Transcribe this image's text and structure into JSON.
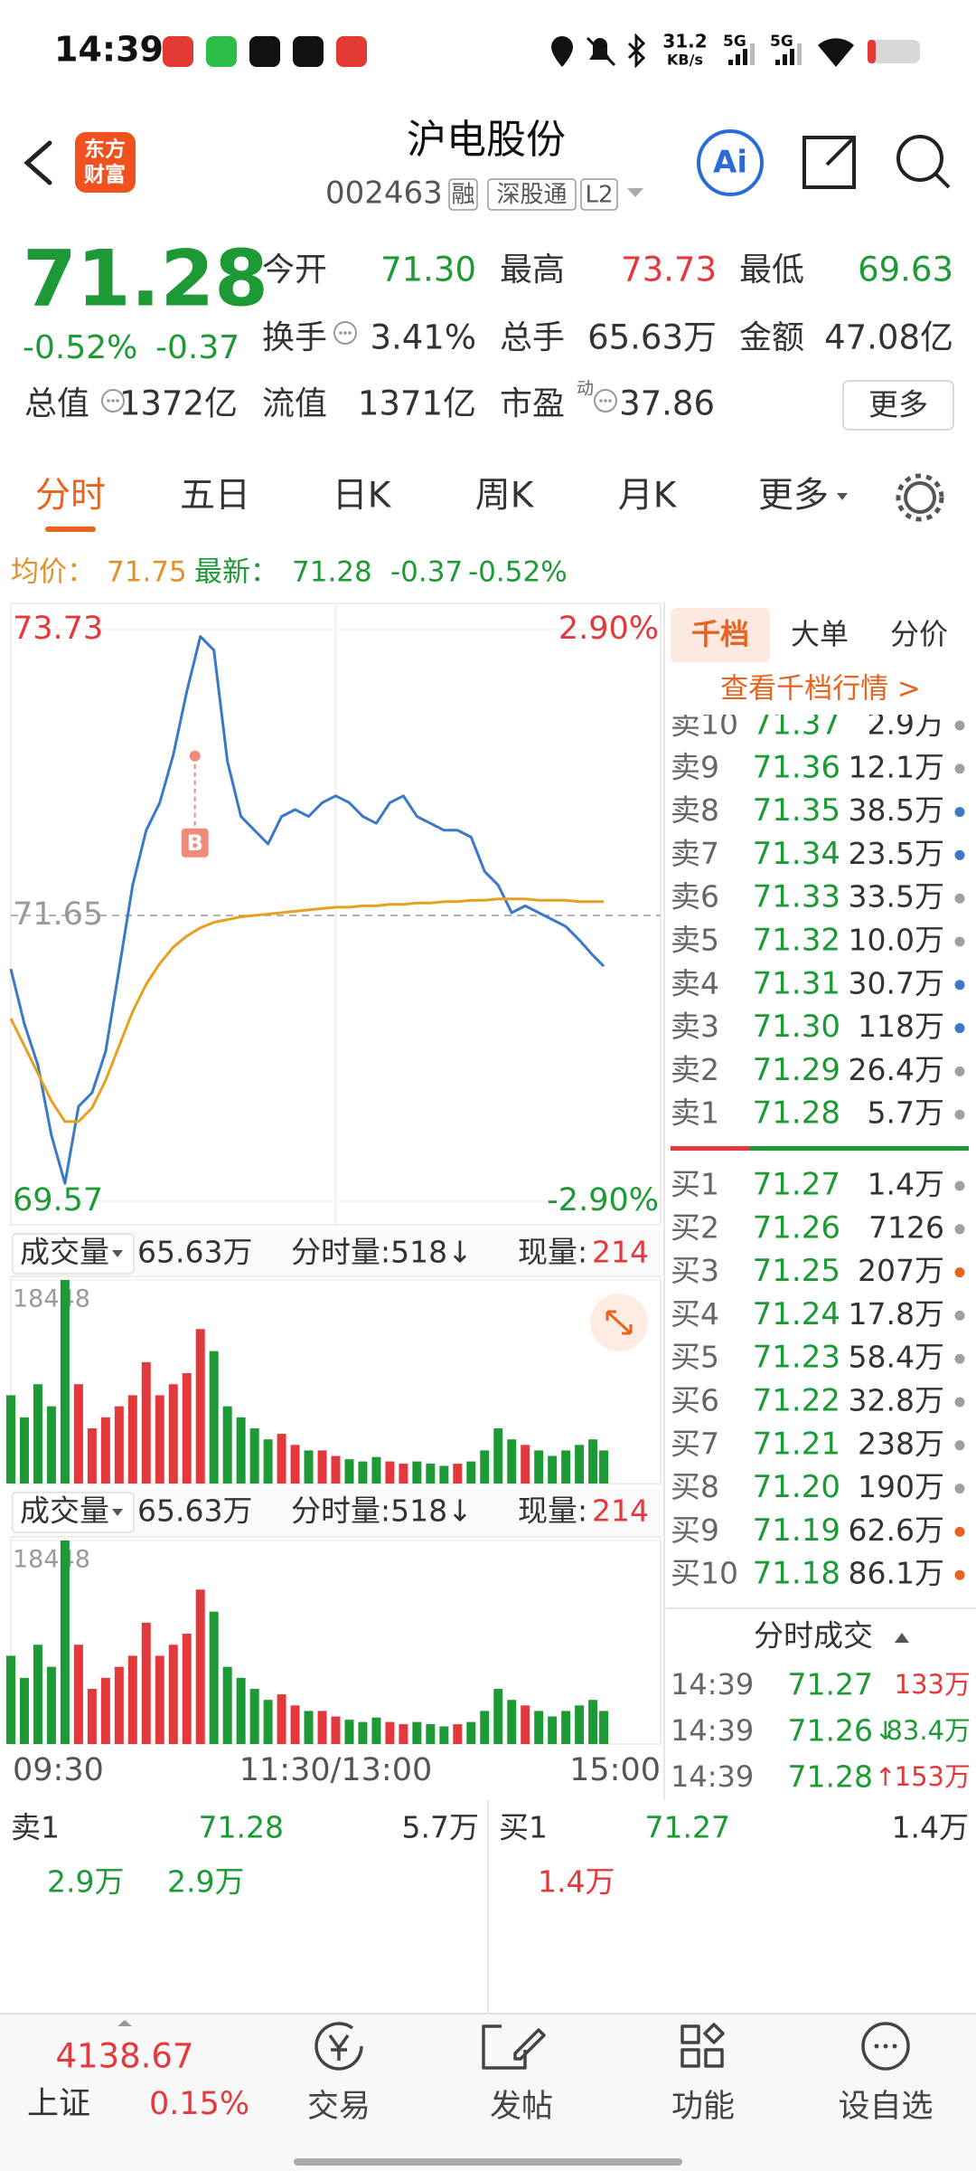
{
  "status_bar": {
    "time": "14:39",
    "speed": "31.2",
    "speed_unit": "KB/s",
    "signal_1": "5G",
    "signal_2": "5G"
  },
  "header": {
    "logo": [
      "东方",
      "财富"
    ],
    "title": "沪电股份",
    "code": "002463",
    "tags": [
      "融",
      "深股通",
      "L2"
    ],
    "ai": "Ai"
  },
  "quote": {
    "price": "71.28",
    "change_pct": "-0.52%",
    "change": "-0.37",
    "fields": [
      {
        "label": "今开",
        "value": "71.30"
      },
      {
        "label": "最高",
        "value": "73.73"
      },
      {
        "label": "最低",
        "value": "69.63"
      },
      {
        "label": "换手",
        "value": "3.41%"
      },
      {
        "label": "总手",
        "value": "65.63万"
      },
      {
        "label": "金额",
        "value": "47.08亿"
      },
      {
        "label": "总值",
        "value": "1372亿"
      },
      {
        "label": "流值",
        "value": "1371亿"
      },
      {
        "label": "市盈",
        "value": "37.86"
      }
    ],
    "pe_note": "动",
    "more": "更多"
  },
  "tabs": [
    "分时",
    "五日",
    "日K",
    "周K",
    "月K",
    "更多"
  ],
  "summary": {
    "avg_label": "均价：",
    "avg": "71.75",
    "latest_label": "最新：",
    "latest": "71.28",
    "change": "-0.37",
    "change_pct": "-0.52%"
  },
  "chart_data": [
    {
      "type": "line",
      "x": [
        0,
        5,
        10,
        15,
        20,
        25,
        30,
        35,
        40,
        45,
        50,
        55,
        60,
        65,
        70,
        75,
        80,
        85,
        90,
        95,
        100,
        105,
        110,
        115,
        120,
        125,
        130,
        135,
        140,
        145,
        150,
        155,
        160,
        165,
        170,
        175,
        180,
        185,
        190,
        195,
        200,
        205,
        210,
        215,
        219
      ],
      "series": [
        {
          "color": "#3a78c8",
          "values": [
            71.26,
            70.86,
            70.56,
            70.05,
            69.7,
            70.26,
            70.36,
            70.66,
            71.26,
            71.87,
            72.27,
            72.47,
            72.82,
            73.28,
            73.68,
            73.58,
            72.77,
            72.37,
            72.27,
            72.17,
            72.37,
            72.42,
            72.37,
            72.47,
            72.52,
            72.47,
            72.37,
            72.32,
            72.47,
            72.52,
            72.37,
            72.32,
            72.27,
            72.27,
            72.22,
            71.97,
            71.87,
            71.67,
            71.72,
            71.67,
            71.62,
            71.57,
            71.47,
            71.36,
            71.28
          ]
        },
        {
          "color": "#e8a020",
          "values": [
            70.9,
            70.7,
            70.5,
            70.3,
            70.15,
            70.15,
            70.25,
            70.45,
            70.7,
            70.95,
            71.15,
            71.3,
            71.42,
            71.5,
            71.56,
            71.6,
            71.62,
            71.64,
            71.65,
            71.66,
            71.67,
            71.68,
            71.69,
            71.7,
            71.71,
            71.71,
            71.72,
            71.72,
            71.73,
            71.73,
            71.74,
            71.74,
            71.75,
            71.75,
            71.76,
            71.76,
            71.77,
            71.77,
            71.77,
            71.76,
            71.76,
            71.76,
            71.75,
            71.75,
            71.75
          ]
        }
      ],
      "xlim": [
        0,
        240
      ],
      "xticks": [
        {
          "value": 0,
          "label": "09:30"
        },
        {
          "value": 120,
          "label": "11:30/13:00"
        },
        {
          "value": 240,
          "label": "15:00"
        }
      ],
      "ylim": [
        69.57,
        73.73
      ],
      "yticks": [
        69.57,
        71.65,
        73.73
      ],
      "y2lim": [
        -2.9,
        2.9
      ],
      "y2ticks": [
        {
          "value": 2.9,
          "label": "2.90%"
        },
        {
          "value": -2.9,
          "label": "-2.90%"
        }
      ],
      "marker": {
        "label": "B",
        "x": 68,
        "value": 72.81
      }
    },
    {
      "type": "bar",
      "indicator": "成交量",
      "total": "65.63万",
      "minute_volume": "分时量:518↓",
      "current_label": "现量:",
      "current": "214",
      "x": [
        0,
        5,
        10,
        15,
        20,
        25,
        30,
        35,
        40,
        45,
        50,
        55,
        60,
        65,
        70,
        75,
        80,
        85,
        90,
        95,
        100,
        105,
        110,
        115,
        120,
        125,
        130,
        135,
        140,
        145,
        150,
        155,
        160,
        165,
        170,
        175,
        180,
        185,
        190,
        195,
        200,
        205,
        210,
        215,
        219
      ],
      "values": [
        8000,
        6000,
        9000,
        7000,
        18448,
        9000,
        5000,
        6000,
        7000,
        8000,
        11000,
        8000,
        9000,
        10000,
        14000,
        12000,
        7000,
        6000,
        5000,
        4000,
        4500,
        3500,
        3000,
        3000,
        2500,
        2200,
        2000,
        2400,
        2000,
        1800,
        2000,
        1800,
        1600,
        1800,
        2000,
        3000,
        5000,
        4000,
        3500,
        3000,
        2500,
        3000,
        3500,
        4000,
        3000
      ],
      "xlim": [
        0,
        240
      ],
      "ylim": [
        0,
        18448
      ],
      "yticks": [
        18448
      ],
      "colors": {
        "up": "#e3393c",
        "down": "#1d9a36"
      }
    },
    {
      "type": "bar",
      "indicator": "成交量",
      "total": "65.63万",
      "minute_volume": "分时量:518↓",
      "current_label": "现量:",
      "current": "214",
      "x": [
        0,
        5,
        10,
        15,
        20,
        25,
        30,
        35,
        40,
        45,
        50,
        55,
        60,
        65,
        70,
        75,
        80,
        85,
        90,
        95,
        100,
        105,
        110,
        115,
        120,
        125,
        130,
        135,
        140,
        145,
        150,
        155,
        160,
        165,
        170,
        175,
        180,
        185,
        190,
        195,
        200,
        205,
        210,
        215,
        219
      ],
      "values": [
        8000,
        6000,
        9000,
        7000,
        18448,
        9000,
        5000,
        6000,
        7000,
        8000,
        11000,
        8000,
        9000,
        10000,
        14000,
        12000,
        7000,
        6000,
        5000,
        4000,
        4500,
        3500,
        3000,
        3000,
        2500,
        2200,
        2000,
        2400,
        2000,
        1800,
        2000,
        1800,
        1600,
        1800,
        2000,
        3000,
        5000,
        4000,
        3500,
        3000,
        2500,
        3000,
        3500,
        4000,
        3000
      ],
      "xlim": [
        0,
        240
      ],
      "ylim": [
        0,
        18448
      ],
      "yticks": [
        18448
      ],
      "colors": {
        "up": "#e3393c",
        "down": "#1d9a36"
      }
    }
  ],
  "order_book": {
    "tabs": [
      "千档",
      "大单",
      "分价"
    ],
    "link": "查看千档行情 >",
    "sell": [
      {
        "label": "卖10",
        "price": "71.37",
        "volume": "2.9万",
        "dot": "#a0a0a0"
      },
      {
        "label": "卖9",
        "price": "71.36",
        "volume": "12.1万",
        "dot": "#a0a0a0"
      },
      {
        "label": "卖8",
        "price": "71.35",
        "volume": "38.5万",
        "dot": "#3a78c8"
      },
      {
        "label": "卖7",
        "price": "71.34",
        "volume": "23.5万",
        "dot": "#3a78c8"
      },
      {
        "label": "卖6",
        "price": "71.33",
        "volume": "33.5万",
        "dot": "#a0a0a0"
      },
      {
        "label": "卖5",
        "price": "71.32",
        "volume": "10.0万",
        "dot": "#a0a0a0"
      },
      {
        "label": "卖4",
        "price": "71.31",
        "volume": "30.7万",
        "dot": "#3a78c8"
      },
      {
        "label": "卖3",
        "price": "71.30",
        "volume": "118万",
        "dot": "#3a78c8"
      },
      {
        "label": "卖2",
        "price": "71.29",
        "volume": "26.4万",
        "dot": "#a0a0a0"
      },
      {
        "label": "卖1",
        "price": "71.28",
        "volume": "5.7万",
        "dot": "#a0a0a0"
      }
    ],
    "buy": [
      {
        "label": "买1",
        "price": "71.27",
        "volume": "1.4万",
        "dot": "#a0a0a0"
      },
      {
        "label": "买2",
        "price": "71.26",
        "volume": "7126",
        "dot": "#a0a0a0"
      },
      {
        "label": "买3",
        "price": "71.25",
        "volume": "207万",
        "dot": "#e8641e"
      },
      {
        "label": "买4",
        "price": "71.24",
        "volume": "17.8万",
        "dot": "#a0a0a0"
      },
      {
        "label": "买5",
        "price": "71.23",
        "volume": "58.4万",
        "dot": "#a0a0a0"
      },
      {
        "label": "买6",
        "price": "71.22",
        "volume": "32.8万",
        "dot": "#a0a0a0"
      },
      {
        "label": "买7",
        "price": "71.21",
        "volume": "238万",
        "dot": "#a0a0a0"
      },
      {
        "label": "买8",
        "price": "71.20",
        "volume": "190万",
        "dot": "#a0a0a0"
      },
      {
        "label": "买9",
        "price": "71.19",
        "volume": "62.6万",
        "dot": "#e8641e"
      },
      {
        "label": "买10",
        "price": "71.18",
        "volume": "86.1万",
        "dot": "#e8641e"
      }
    ]
  },
  "trades": {
    "title": "分时成交",
    "rows": [
      {
        "time": "14:39",
        "price": "71.27",
        "volume": "133万",
        "color": "#e3393c"
      },
      {
        "time": "14:39",
        "price": "71.26",
        "arrow": "↓",
        "volume": "83.4万",
        "color": "#1d9a36"
      },
      {
        "time": "14:39",
        "price": "71.28",
        "arrow": "↑",
        "volume": "153万",
        "color": "#e3393c"
      }
    ]
  },
  "bottom_quote": {
    "sell": {
      "label": "卖1",
      "price": "71.28",
      "volume": "5.7万",
      "orders": [
        "2.9万",
        "2.9万"
      ]
    },
    "buy": {
      "label": "买1",
      "price": "71.27",
      "volume": "1.4万",
      "orders": [
        "1.4万"
      ]
    }
  },
  "nav": {
    "index_value": "4138.67",
    "index_name": "上证",
    "index_change": "0.15%",
    "items": [
      "交易",
      "发帖",
      "功能",
      "设自选"
    ]
  }
}
